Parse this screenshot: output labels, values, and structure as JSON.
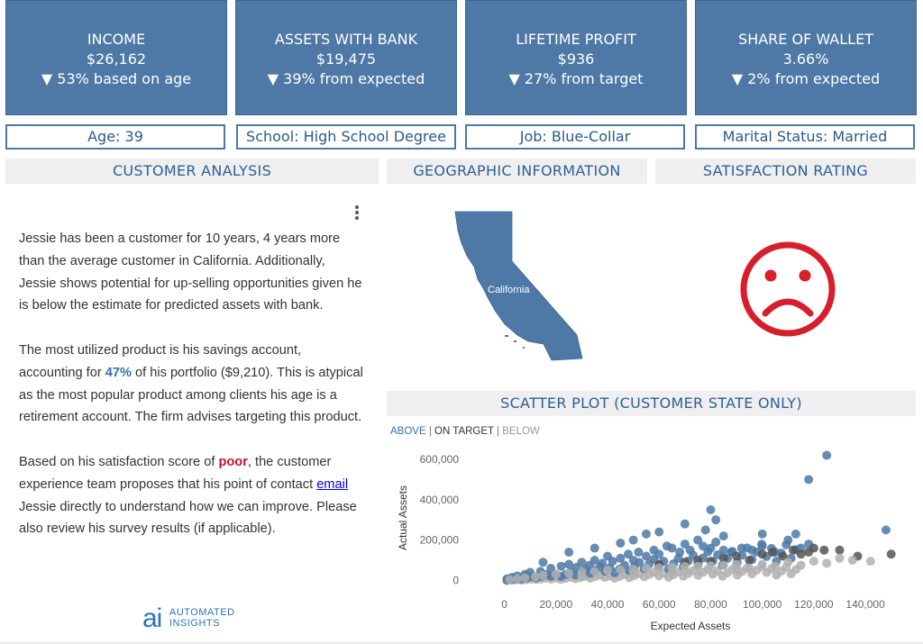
{
  "kpis": [
    {
      "title": "INCOME",
      "value": "$26,162",
      "delta": "▼ 53% based on age"
    },
    {
      "title": "ASSETS WITH BANK",
      "value": "$19,475",
      "delta": "▼ 39% from expected"
    },
    {
      "title": "LIFETIME PROFIT",
      "value": "$936",
      "delta": "▼ 27% from target"
    },
    {
      "title": "SHARE OF WALLET",
      "value": "3.66%",
      "delta": "▼ 2% from expected"
    }
  ],
  "attributes": {
    "age": "Age:  39",
    "school": "School:  High School Degree",
    "job": "Job:  Blue-Collar",
    "marital": "Marital Status:  Married"
  },
  "sections": {
    "customer_analysis": "CUSTOMER ANALYSIS",
    "geographic": "GEOGRAPHIC INFORMATION",
    "satisfaction": "SATISFACTION RATING",
    "scatter": "SCATTER PLOT (CUSTOMER STATE ONLY)"
  },
  "narrative": {
    "p1": "Jessie has been a customer for 10 years, 4 years more than the average customer in California. Additionally, Jessie shows potential for up-selling opportunities given he is below the estimate for predicted assets with bank.",
    "p2_a": "The most utilized product is his savings account, accounting for ",
    "p2_pct": "47%",
    "p2_b": " of his portfolio ($9,210). This is atypical as the most popular product among clients his age is a retirement account. The firm advises targeting this product.",
    "p3_a": "Based on his satisfaction score of ",
    "p3_score": "poor",
    "p3_b": ", the customer experience team proposes that his point of contact ",
    "p3_link": "email",
    "p3_c": " Jessie directly to understand how we can improve. Please also review his survey results (if applicable)."
  },
  "map": {
    "state_label": "California",
    "fill_color": "#4e79a7"
  },
  "satisfaction_icon": {
    "name": "sad-face-icon",
    "color": "#d71f2c"
  },
  "legend_filter": {
    "above": "ABOVE",
    "sep1": " | ",
    "on_target": "ON TARGET",
    "sep2": " | ",
    "below": "BELOW"
  },
  "logo": {
    "mark": "ai",
    "line1": "AUTOMATED",
    "line2": "INSIGHTS"
  },
  "colors": {
    "above": "#4e79a7",
    "on_target": "#555555",
    "below": "#b0b0b0",
    "accent": "#4e79a7",
    "poor": "#c0152a"
  },
  "chart_data": {
    "type": "scatter",
    "xlabel": "Expected Assets",
    "ylabel": "Actual Assets",
    "xlim": [
      -10000,
      155000
    ],
    "ylim": [
      -25000,
      640000
    ],
    "xticks": [
      0,
      20000,
      40000,
      60000,
      80000,
      100000,
      120000,
      140000
    ],
    "xtick_labels": [
      "0",
      "20,000",
      "40,000",
      "60,000",
      "80,000",
      "100,000",
      "120,000",
      "140,000"
    ],
    "yticks": [
      0,
      200000,
      400000,
      600000
    ],
    "ytick_labels": [
      "0",
      "200,000",
      "400,000",
      "600,000"
    ],
    "series": [
      {
        "name": "ABOVE",
        "color": "#4e79a7",
        "points": [
          [
            1000,
            8000
          ],
          [
            3000,
            15000
          ],
          [
            5000,
            22000
          ],
          [
            8000,
            30000
          ],
          [
            10000,
            40000
          ],
          [
            14000,
            45000
          ],
          [
            18000,
            60000
          ],
          [
            22000,
            70000
          ],
          [
            25000,
            80000
          ],
          [
            28000,
            65000
          ],
          [
            30000,
            90000
          ],
          [
            33000,
            75000
          ],
          [
            35000,
            100000
          ],
          [
            38000,
            85000
          ],
          [
            40000,
            120000
          ],
          [
            42000,
            95000
          ],
          [
            45000,
            110000
          ],
          [
            48000,
            130000
          ],
          [
            50000,
            100000
          ],
          [
            52000,
            140000
          ],
          [
            55000,
            120000
          ],
          [
            58000,
            150000
          ],
          [
            60000,
            130000
          ],
          [
            63000,
            170000
          ],
          [
            65000,
            160000
          ],
          [
            68000,
            140000
          ],
          [
            70000,
            180000
          ],
          [
            72000,
            150000
          ],
          [
            75000,
            200000
          ],
          [
            77000,
            170000
          ],
          [
            80000,
            160000
          ],
          [
            82000,
            190000
          ],
          [
            85000,
            150000
          ],
          [
            88000,
            140000
          ],
          [
            92000,
            160000
          ],
          [
            96000,
            150000
          ],
          [
            100000,
            170000
          ],
          [
            105000,
            140000
          ],
          [
            110000,
            200000
          ],
          [
            115000,
            160000
          ],
          [
            118000,
            180000
          ],
          [
            80000,
            350000
          ],
          [
            82000,
            300000
          ],
          [
            78000,
            250000
          ],
          [
            70000,
            280000
          ],
          [
            60000,
            240000
          ],
          [
            55000,
            230000
          ],
          [
            118000,
            500000
          ],
          [
            125000,
            620000
          ],
          [
            148000,
            250000
          ],
          [
            100000,
            230000
          ],
          [
            113000,
            230000
          ],
          [
            85000,
            220000
          ],
          [
            45000,
            185000
          ],
          [
            25000,
            140000
          ],
          [
            15000,
            90000
          ],
          [
            35000,
            160000
          ],
          [
            50000,
            200000
          ]
        ]
      },
      {
        "name": "ON TARGET",
        "color": "#555555",
        "points": [
          [
            60000,
            80000
          ],
          [
            70000,
            90000
          ],
          [
            75000,
            100000
          ],
          [
            80000,
            95000
          ],
          [
            85000,
            110000
          ],
          [
            90000,
            120000
          ],
          [
            95000,
            100000
          ],
          [
            100000,
            130000
          ],
          [
            104000,
            140000
          ],
          [
            108000,
            120000
          ],
          [
            112000,
            150000
          ],
          [
            115000,
            130000
          ],
          [
            118000,
            140000
          ],
          [
            120000,
            160000
          ],
          [
            124000,
            150000
          ],
          [
            130000,
            150000
          ],
          [
            137000,
            120000
          ],
          [
            150000,
            130000
          ]
        ]
      },
      {
        "name": "BELOW",
        "color": "#b0b0b0",
        "points": [
          [
            2000,
            3000
          ],
          [
            5000,
            8000
          ],
          [
            8000,
            12000
          ],
          [
            12000,
            18000
          ],
          [
            15000,
            25000
          ],
          [
            20000,
            30000
          ],
          [
            25000,
            35000
          ],
          [
            30000,
            40000
          ],
          [
            35000,
            45000
          ],
          [
            40000,
            50000
          ],
          [
            45000,
            52000
          ],
          [
            50000,
            55000
          ],
          [
            55000,
            60000
          ],
          [
            60000,
            62000
          ],
          [
            65000,
            65000
          ],
          [
            70000,
            68000
          ],
          [
            75000,
            70000
          ],
          [
            80000,
            72000
          ],
          [
            85000,
            75000
          ],
          [
            90000,
            78000
          ],
          [
            95000,
            60000
          ],
          [
            100000,
            80000
          ],
          [
            105000,
            70000
          ],
          [
            110000,
            90000
          ],
          [
            115000,
            75000
          ],
          [
            120000,
            95000
          ],
          [
            125000,
            85000
          ],
          [
            130000,
            110000
          ],
          [
            135000,
            100000
          ],
          [
            142000,
            95000
          ],
          [
            30000,
            20000
          ],
          [
            50000,
            35000
          ],
          [
            70000,
            45000
          ],
          [
            90000,
            55000
          ],
          [
            65000,
            40000
          ]
        ]
      }
    ]
  }
}
